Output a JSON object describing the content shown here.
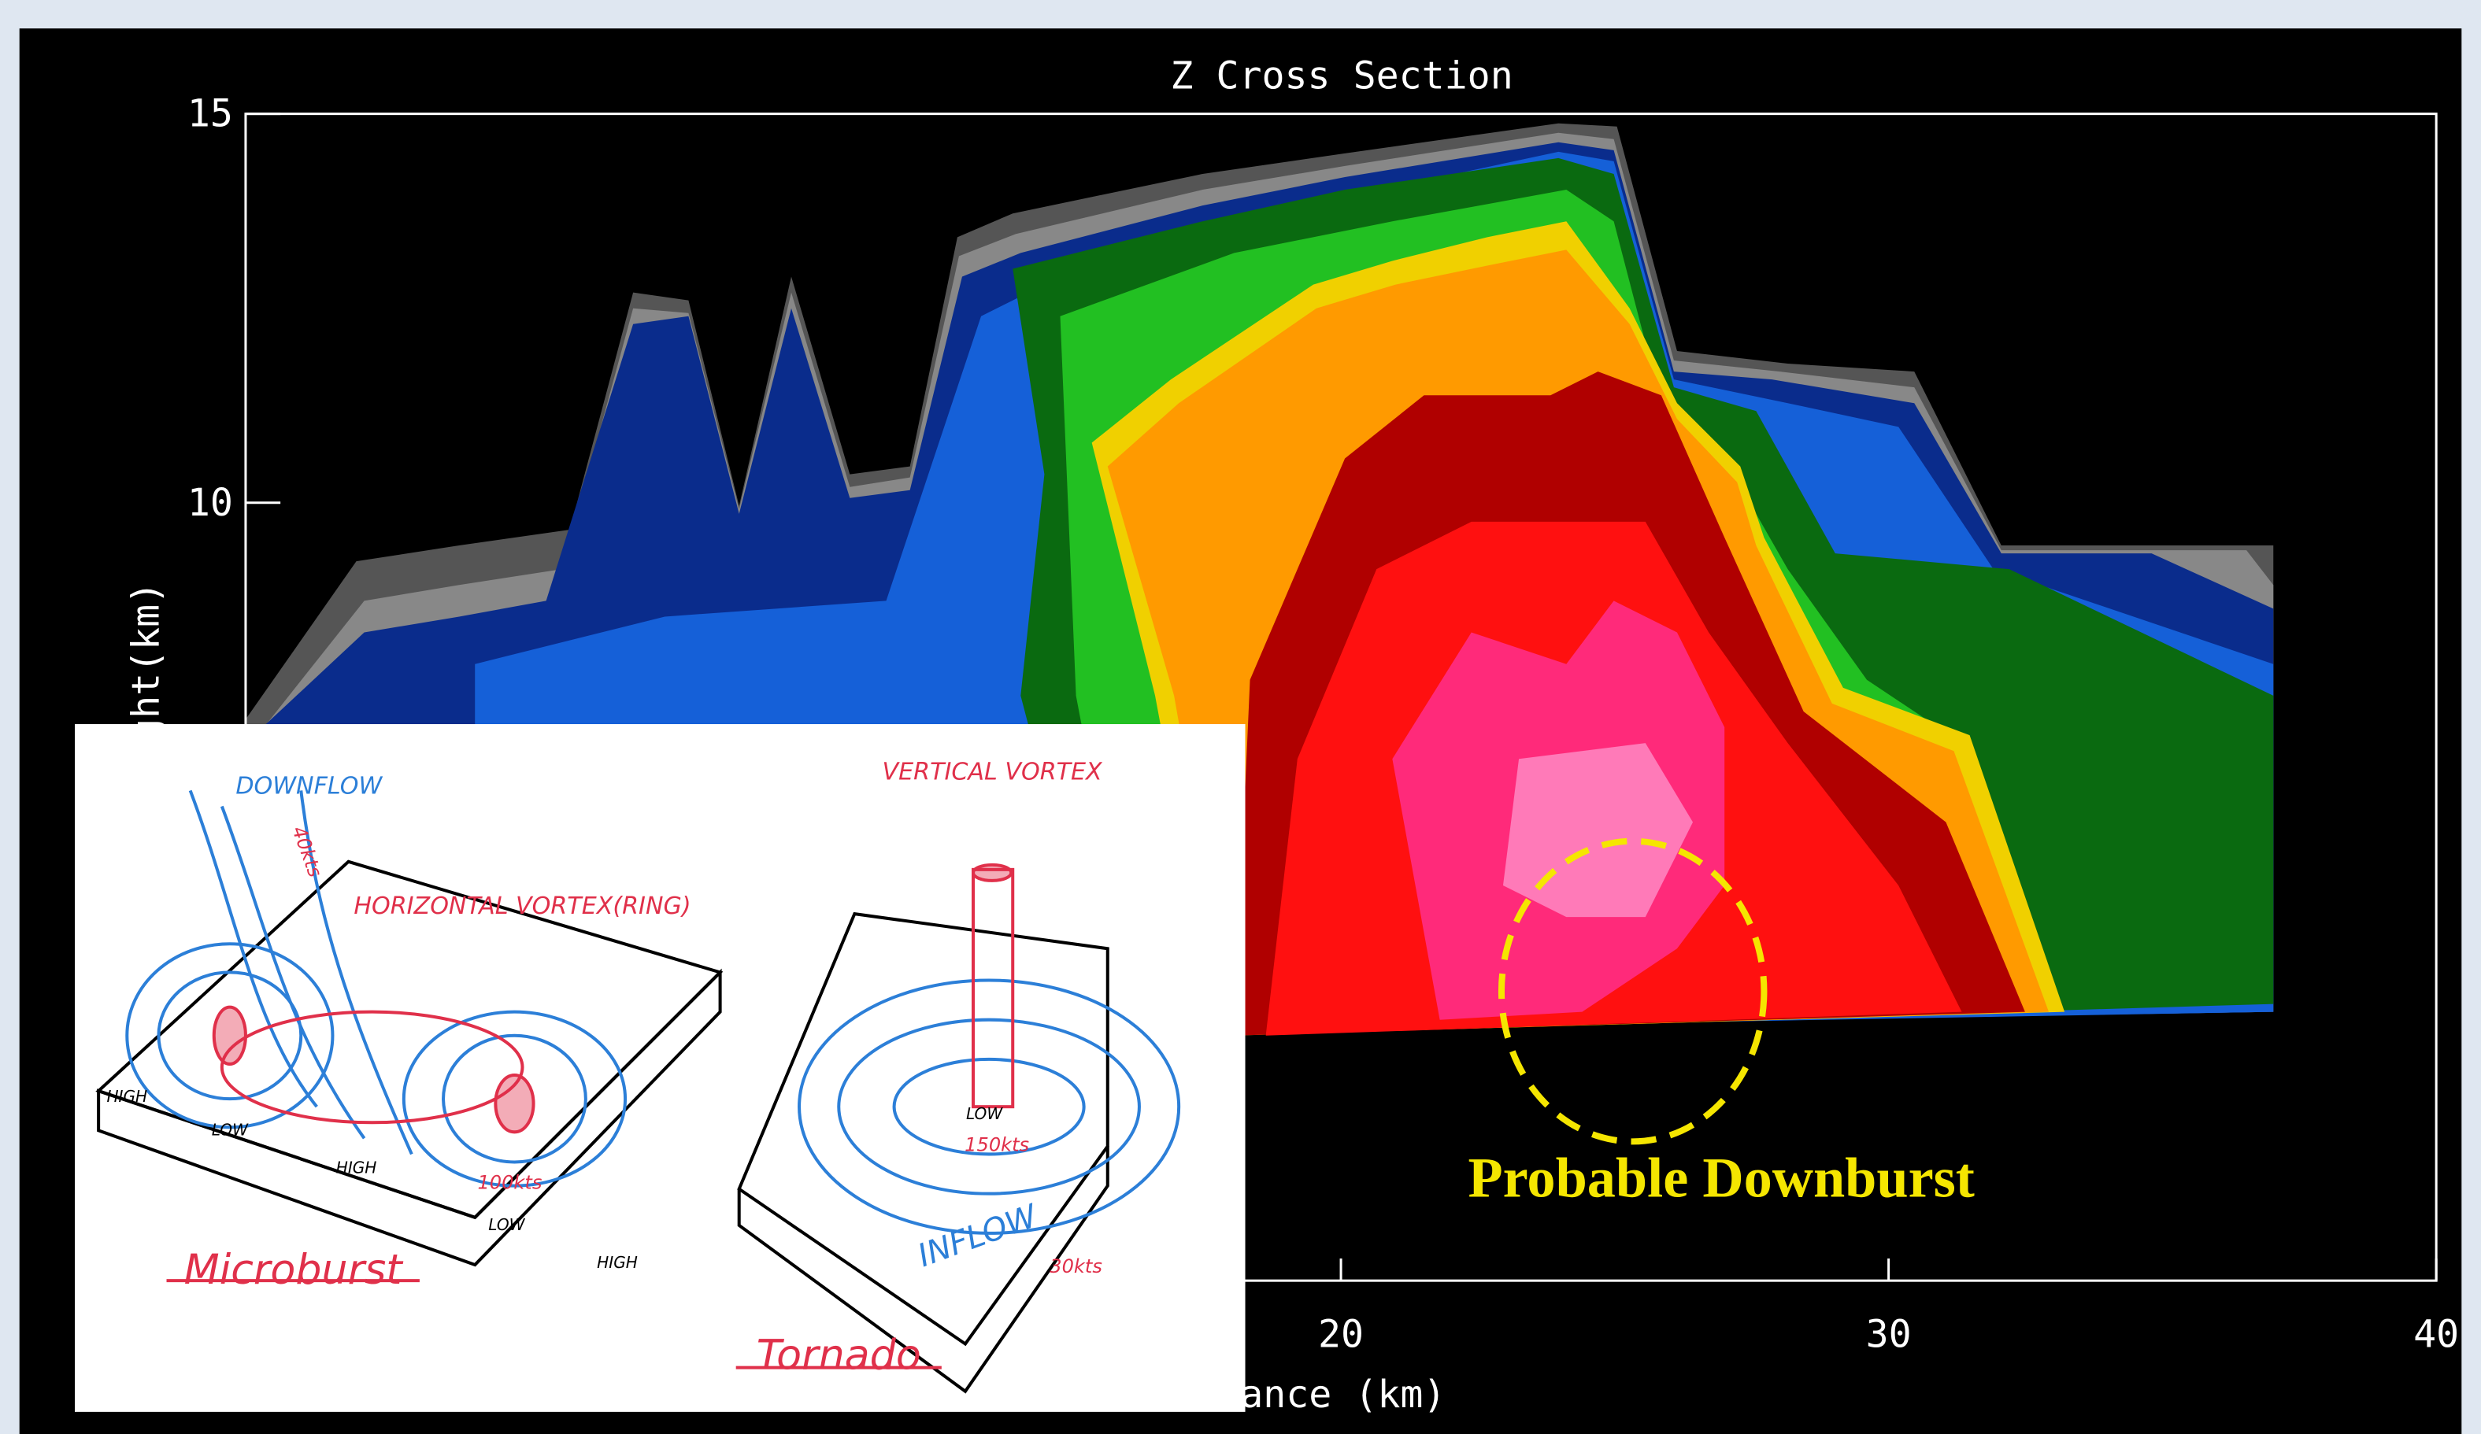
{
  "chart_data": {
    "type": "cross-section",
    "title": "Z Cross Section",
    "x_label": "Distance (km)",
    "y_label": "Height(km)",
    "xlim": [
      0,
      40
    ],
    "ylim": [
      0,
      15
    ],
    "xticks": [
      20,
      30,
      40
    ],
    "yticks": [
      10,
      15
    ],
    "annotation": "Probable Downburst"
  },
  "inset": {
    "labels": [
      "DOWNFLOW",
      "VERTICAL VORTEX",
      "HORIZONTAL VORTEX(RING)",
      "40kts",
      "100kts",
      "150kts",
      "30kts",
      "HIGH",
      "LOW",
      "HIGH",
      "LOW",
      "HIGH",
      "LOW",
      "INFLOW"
    ],
    "microburst": "Microburst",
    "tornado": "Tornado"
  }
}
